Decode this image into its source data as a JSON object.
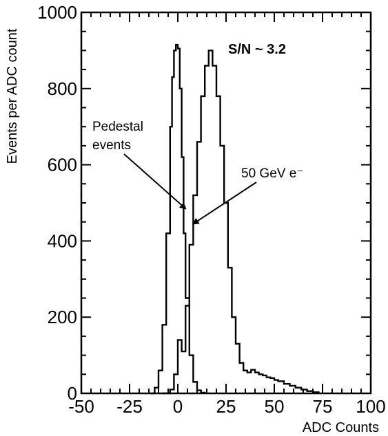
{
  "chart_data": {
    "type": "line",
    "title": "",
    "xlabel": "ADC Counts",
    "ylabel": "Events per ADC count",
    "xlim": [
      -50,
      100
    ],
    "ylim": [
      0,
      1000
    ],
    "xticks": [
      -50,
      -25,
      0,
      25,
      50,
      75,
      100
    ],
    "yticks": [
      0,
      200,
      400,
      600,
      800,
      1000
    ],
    "xtick_labels": [
      "-50",
      "-25",
      "0",
      "25",
      "50",
      "75",
      "100"
    ],
    "ytick_labels": [
      "0",
      "200",
      "400",
      "600",
      "800",
      "1000"
    ],
    "step_histogram": true,
    "grid": false,
    "series": [
      {
        "x": [
          -14,
          -12,
          -10,
          -8,
          -6,
          -4,
          -3,
          -2,
          -1,
          0,
          1,
          2,
          3,
          4,
          6,
          8,
          10,
          12,
          14
        ],
        "values": [
          0,
          15,
          60,
          180,
          420,
          700,
          830,
          900,
          915,
          905,
          800,
          620,
          420,
          250,
          100,
          30,
          8,
          2,
          0
        ]
      },
      {
        "x": [
          -8,
          -4,
          -2,
          0,
          2,
          4,
          6,
          8,
          10,
          12,
          14,
          16,
          18,
          20,
          22,
          24,
          26,
          28,
          30,
          32,
          34,
          36,
          38,
          40,
          42,
          44,
          46,
          48,
          50,
          52,
          55,
          58,
          61,
          64,
          67,
          70,
          73
        ],
        "values": [
          0,
          10,
          50,
          140,
          110,
          230,
          390,
          520,
          660,
          780,
          860,
          900,
          860,
          780,
          650,
          500,
          330,
          200,
          130,
          80,
          60,
          55,
          62,
          55,
          50,
          47,
          42,
          40,
          35,
          32,
          25,
          20,
          15,
          10,
          6,
          3,
          0
        ]
      }
    ],
    "annotations": [
      {
        "text": "S/N ~ 3.2"
      },
      {
        "text": "Pedestal"
      },
      {
        "text": "events"
      },
      {
        "text": "50 GeV e⁻"
      }
    ]
  }
}
